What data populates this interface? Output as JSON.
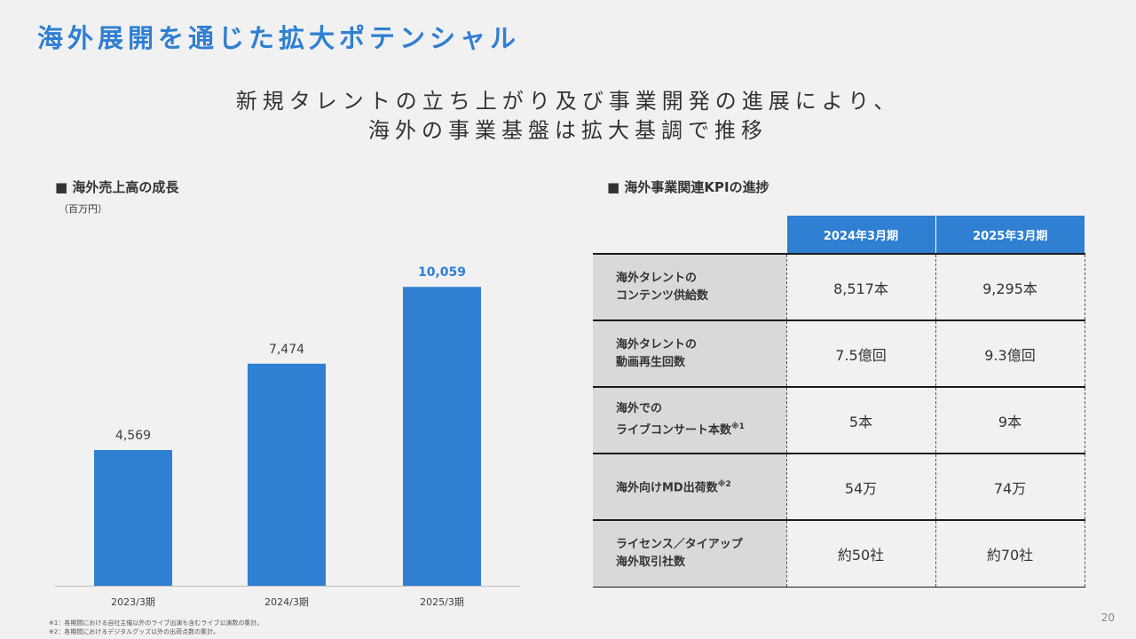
{
  "title": "海外展開を通じた拡大ポテンシャル",
  "subtitle": {
    "line1": "新規タレントの立ち上がり及び事業開発の進展により、",
    "line2": "海外の事業基盤は拡大基調で推移"
  },
  "left_section": {
    "heading": "■ 海外売上高の成長",
    "unit": "（百万円）"
  },
  "right_section": {
    "heading": "■ 海外事業関連KPIの進捗"
  },
  "chart_data": {
    "type": "bar",
    "title": "",
    "categories": [
      "2023/3期",
      "2024/3期",
      "2025/3期"
    ],
    "values": [
      4569,
      7474,
      10059
    ],
    "value_labels": [
      "4,569",
      "7,474",
      "10,059"
    ],
    "ylabel": "（百万円）",
    "ylim": [
      0,
      11500
    ],
    "grid": false,
    "bar_color": "#2f7fd2",
    "highlight_label_color": "#2f7fd2"
  },
  "kpi_table": {
    "columns": [
      "2024年3月期",
      "2025年3月期"
    ],
    "rows": [
      {
        "label_line1": "海外タレントの",
        "label_line2": "コンテンツ供給数",
        "note": "",
        "values": [
          "8,517本",
          "9,295本"
        ]
      },
      {
        "label_line1": "海外タレントの",
        "label_line2": "動画再生回数",
        "note": "",
        "values": [
          "7.5億回",
          "9.3億回"
        ]
      },
      {
        "label_line1": "海外での",
        "label_line2": "ライブコンサート本数",
        "note": "※1",
        "values": [
          "5本",
          "9本"
        ]
      },
      {
        "label_line1": "",
        "label_line2": "海外向けMD出荷数",
        "note": "※2",
        "values": [
          "54万",
          "74万"
        ]
      },
      {
        "label_line1": "ライセンス／タイアップ",
        "label_line2": "海外取引社数",
        "note": "",
        "values": [
          "約50社",
          "約70社"
        ]
      }
    ]
  },
  "footnotes": [
    "※1：各期間における自社主催以外のライブ出演も含むライブ公演数の集計。",
    "※2：各期間におけるデジタルグッズ以外の出荷点数の集計。"
  ],
  "page_number": "20",
  "colors": {
    "accent": "#2f7fd2",
    "background": "#f1f1f1",
    "row_label_bg": "#d9d9d9"
  }
}
